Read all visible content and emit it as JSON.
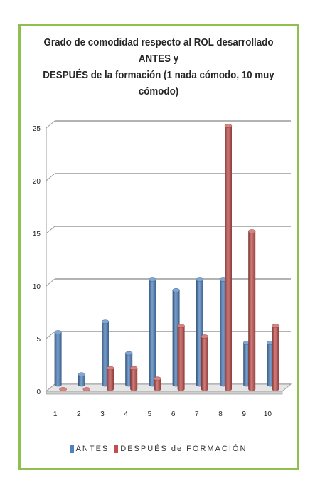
{
  "chart_data": {
    "type": "bar",
    "title_lines": [
      "Grado de comodidad respecto al ROL desarrollado ANTES y",
      "DESPUÉS de la formación (1 nada cómodo, 10 muy cómodo)"
    ],
    "categories": [
      "1",
      "2",
      "3",
      "4",
      "5",
      "6",
      "7",
      "8",
      "9",
      "10"
    ],
    "series": [
      {
        "name": "ANTES",
        "color": "#4f81bd",
        "values": [
          5,
          1,
          6,
          3,
          10,
          9,
          10,
          10,
          4,
          4
        ]
      },
      {
        "name": "DESPUÉS de FORMACIÓN",
        "color": "#c0504d",
        "values": [
          0,
          0,
          2,
          2,
          1,
          6,
          5,
          25,
          15,
          6
        ]
      }
    ],
    "y_ticks": [
      "0",
      "5",
      "10",
      "15",
      "20",
      "25"
    ],
    "ylim": [
      0,
      25
    ],
    "grid": true,
    "legend_position": "bottom"
  }
}
